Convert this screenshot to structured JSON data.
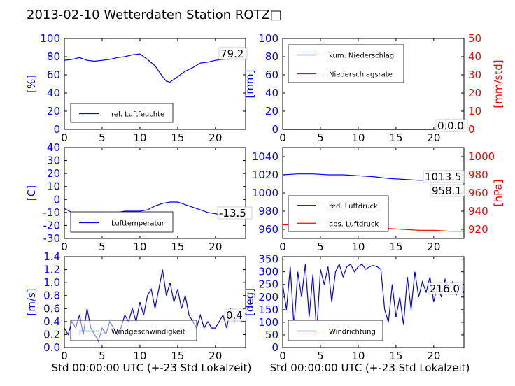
{
  "title": "2013-02-10 Wetterdaten Station ROTZ□",
  "colors": {
    "blue": "#0000ff",
    "red": "#ff0000",
    "light_blue": "#8c8cff"
  },
  "chart_data": [
    {
      "id": "humidity",
      "type": "line",
      "ylabel": "[%]",
      "xlim": [
        0,
        24
      ],
      "ylim": [
        0,
        100
      ],
      "xticks": [
        0,
        5,
        10,
        15,
        20
      ],
      "yticks": [
        0,
        20,
        40,
        60,
        80,
        100
      ],
      "legend": {
        "placement": "lower-left",
        "entries": [
          "rel. Luftfeuchte"
        ]
      },
      "annotation": "79.2",
      "series": [
        {
          "name": "rel. Luftfeuchte",
          "color": "#0000ff",
          "x": [
            0,
            1,
            2,
            3,
            4,
            5,
            6,
            7,
            8,
            9,
            10,
            11,
            12,
            13,
            13.5,
            14,
            15,
            16,
            17,
            18,
            19,
            20,
            21,
            22,
            23,
            24
          ],
          "y": [
            76,
            77,
            79,
            76,
            75,
            76,
            77,
            79,
            80,
            82,
            83,
            77,
            70,
            58,
            53,
            52,
            58,
            64,
            68,
            73,
            74,
            76,
            77,
            78,
            79,
            79
          ]
        }
      ]
    },
    {
      "id": "precip",
      "type": "line",
      "ylabel": "[mm]",
      "ylabel_right": "[mm/std]",
      "xlim": [
        0,
        24
      ],
      "ylim": [
        0,
        100
      ],
      "ylim_right": [
        0,
        50
      ],
      "xticks": [
        0,
        5,
        10,
        15,
        20
      ],
      "yticks": [
        0,
        20,
        40,
        60,
        80,
        100
      ],
      "yticks_right": [
        0,
        10,
        20,
        30,
        40,
        50
      ],
      "legend": {
        "placement": "upper-left",
        "entries": [
          "kum. Niederschlag",
          "Niederschlagsrate"
        ]
      },
      "annotation": "0.0",
      "annotation2": "0.0",
      "series": [
        {
          "name": "kum. Niederschlag",
          "color": "#0000ff",
          "x": [
            0,
            24
          ],
          "y": [
            0,
            0
          ]
        },
        {
          "name": "Niederschlagsrate",
          "color": "#ff0000",
          "x": [
            0,
            24
          ],
          "y": [
            0,
            0
          ]
        }
      ]
    },
    {
      "id": "temperature",
      "type": "line",
      "ylabel": "[C]",
      "xlim": [
        0,
        24
      ],
      "ylim": [
        -30,
        40
      ],
      "xticks": [
        0,
        5,
        10,
        15,
        20
      ],
      "yticks": [
        -30,
        -20,
        -10,
        0,
        10,
        20,
        30,
        40
      ],
      "legend": {
        "placement": "lower-left",
        "entries": [
          "Lufttemperatur"
        ]
      },
      "annotation": "-13.5",
      "series": [
        {
          "name": "Lufttemperatur",
          "color": "#0000ff",
          "x": [
            0,
            1,
            2,
            3,
            4,
            5,
            6,
            7,
            8,
            9,
            10,
            11,
            12,
            13,
            14,
            15,
            16,
            17,
            18,
            19,
            20,
            21,
            22,
            23,
            24
          ],
          "y": [
            -7,
            -10,
            -13,
            -15,
            -15,
            -13,
            -12,
            -10,
            -9,
            -9,
            -9,
            -8,
            -5,
            -3,
            -2,
            -2,
            -4,
            -6,
            -8,
            -10,
            -11,
            -12,
            -13,
            -13,
            -13.5
          ]
        }
      ]
    },
    {
      "id": "pressure",
      "type": "line",
      "ylabel_right": "[hPa]",
      "xlim": [
        0,
        24
      ],
      "ylim": [
        950,
        1050
      ],
      "ylim_right": [
        910,
        1010
      ],
      "xticks": [
        0,
        5,
        10,
        15,
        20
      ],
      "yticks": [
        960,
        980,
        1000,
        1020,
        1040
      ],
      "yticks_right": [
        920,
        940,
        960,
        980,
        1000
      ],
      "legend": {
        "placement": "lower-left",
        "entries": [
          "red. Luftdruck",
          "abs. Luftdruck"
        ]
      },
      "annotation": "1013.5",
      "annotation2": "958.1",
      "series": [
        {
          "name": "red. Luftdruck",
          "color": "#0000ff",
          "x": [
            0,
            2,
            4,
            6,
            8,
            10,
            12,
            14,
            16,
            18,
            20,
            22,
            24
          ],
          "y": [
            1020,
            1021,
            1021,
            1020,
            1020,
            1019,
            1018,
            1016,
            1015,
            1014,
            1014,
            1014,
            1014
          ]
        },
        {
          "name": "abs. Luftdruck",
          "color": "#ff0000",
          "x": [
            0,
            2,
            4,
            6,
            8,
            10,
            12,
            14,
            16,
            18,
            20,
            22,
            24
          ],
          "y": [
            965,
            965,
            965,
            965,
            965,
            964,
            963,
            961,
            960,
            959,
            959,
            958,
            958
          ]
        }
      ]
    },
    {
      "id": "windspeed",
      "type": "line",
      "ylabel": "[m/s]",
      "xlabel": "Std 00:00:00 UTC (+-23 Std Lokalzeit)",
      "xlim": [
        0,
        24
      ],
      "ylim": [
        0,
        1.4
      ],
      "xticks": [
        0,
        5,
        10,
        15,
        20
      ],
      "yticks": [
        0.0,
        0.2,
        0.4,
        0.6,
        0.8,
        1.0,
        1.2,
        1.4
      ],
      "legend": {
        "placement": "lower-center",
        "entries": [
          "Windgeschwindigkeit"
        ]
      },
      "annotation": "0.4",
      "series": [
        {
          "name": "Windgeschwindigkeit",
          "color": "#0000ff",
          "x": [
            0,
            0.5,
            1,
            1.5,
            2,
            2.5,
            3,
            3.5,
            4,
            4.5,
            5,
            5.5,
            6,
            6.5,
            7,
            7.5,
            8,
            8.5,
            9,
            9.5,
            10,
            10.5,
            11,
            11.5,
            12,
            12.5,
            13,
            13.5,
            14,
            14.5,
            15,
            15.5,
            16,
            16.5,
            17,
            17.5,
            18,
            18.5,
            19,
            19.5,
            20,
            20.5,
            21,
            21.5,
            22,
            22.5,
            23,
            23.5,
            24
          ],
          "y": [
            0.3,
            0.2,
            0.4,
            0.3,
            0.5,
            0.2,
            0.6,
            0.3,
            0.2,
            0.1,
            0.3,
            0.2,
            0.4,
            0.3,
            0.2,
            0.3,
            0.5,
            0.4,
            0.6,
            0.4,
            0.7,
            0.5,
            0.8,
            0.9,
            0.6,
            0.9,
            1.2,
            0.8,
            1.0,
            0.7,
            0.9,
            0.6,
            0.8,
            0.5,
            0.4,
            0.3,
            0.5,
            0.3,
            0.4,
            0.3,
            0.3,
            0.4,
            0.5,
            0.3,
            0.6,
            0.4,
            0.5,
            0.4,
            0.4
          ]
        }
      ]
    },
    {
      "id": "winddir",
      "type": "line",
      "ylabel": "[deg]",
      "xlabel": "Std 00:00:00 UTC (+-23 Std Lokalzeit)",
      "xlim": [
        0,
        24
      ],
      "ylim": [
        0,
        360
      ],
      "xticks": [
        0,
        5,
        10,
        15,
        20
      ],
      "yticks": [
        0,
        50,
        100,
        150,
        200,
        250,
        300,
        350
      ],
      "legend": {
        "placement": "lower-left",
        "entries": [
          "Windrichtung"
        ]
      },
      "annotation": "216.0",
      "series": [
        {
          "name": "Windrichtung",
          "color": "#0000ff",
          "x": [
            0,
            0.5,
            1,
            1.5,
            2,
            2.5,
            3,
            3.5,
            4,
            4.5,
            5,
            5.5,
            6,
            6.5,
            7,
            7.5,
            8,
            8.5,
            9,
            9.5,
            10,
            10.5,
            11,
            11.5,
            12,
            12.5,
            13,
            13.5,
            14,
            14.5,
            15,
            15.5,
            16,
            16.5,
            17,
            17.5,
            18,
            18.5,
            19,
            19.5,
            20,
            20.5,
            21,
            21.5,
            22,
            22.5,
            23,
            23.5,
            24
          ],
          "y": [
            250,
            150,
            320,
            80,
            300,
            200,
            330,
            120,
            290,
            60,
            310,
            250,
            320,
            180,
            300,
            330,
            280,
            320,
            330,
            300,
            320,
            330,
            310,
            320,
            325,
            320,
            310,
            150,
            100,
            250,
            120,
            200,
            90,
            280,
            150,
            300,
            200,
            260,
            220,
            280,
            180,
            250,
            200,
            270,
            230,
            260,
            210,
            250,
            216
          ]
        }
      ]
    }
  ]
}
